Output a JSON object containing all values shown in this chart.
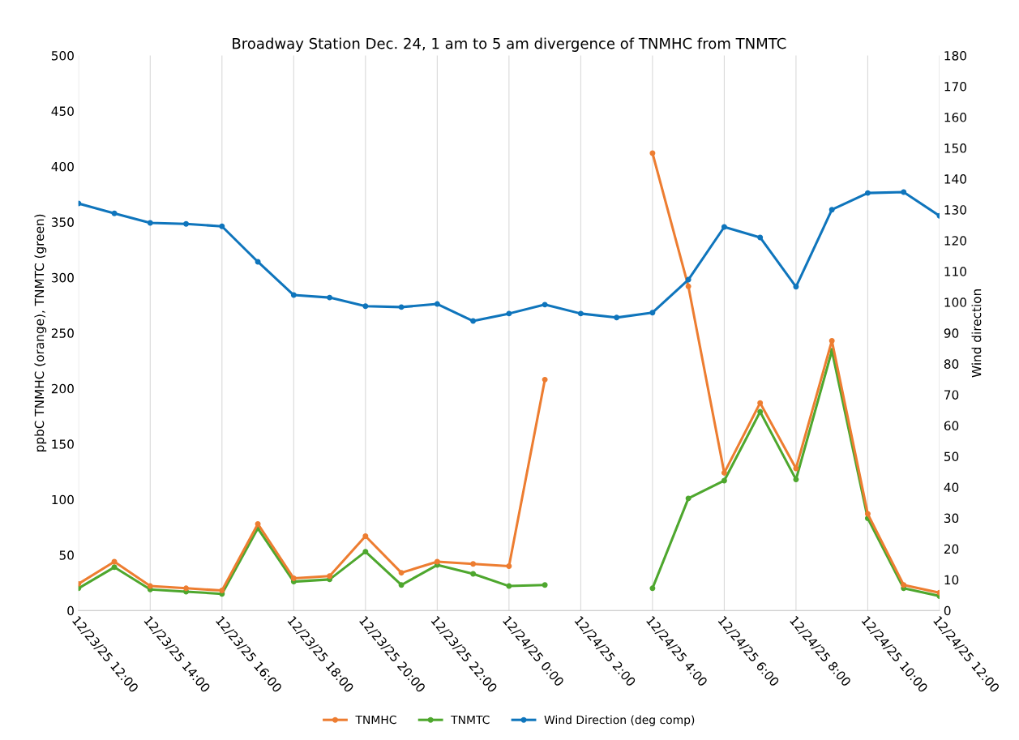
{
  "chart_data": {
    "type": "line",
    "title": "Broadway Station Dec. 24, 1 am to 5 am divergence of TNMHC from TNMTC",
    "ylabel": "ppbC TNMHC (orange), TNMTC (green)",
    "y2label": "Wind direction",
    "categories": [
      "12/23/25 12:00",
      null,
      "12/23/25 14:00",
      null,
      "12/23/25 16:00",
      null,
      "12/23/25 18:00",
      null,
      "12/23/25 20:00",
      null,
      "12/23/25 22:00",
      null,
      "12/24/25 0:00",
      null,
      "12/24/25 2:00",
      null,
      "12/24/25 4:00",
      null,
      "12/24/25 6:00",
      null,
      "12/24/25 8:00",
      null,
      "12/24/25 10:00",
      null,
      "12/24/25 12:00"
    ],
    "ylim": [
      0,
      500
    ],
    "yticks": [
      0,
      50,
      100,
      150,
      200,
      250,
      300,
      350,
      400,
      450,
      500
    ],
    "y2lim": [
      0,
      180
    ],
    "y2ticks": [
      0,
      10,
      20,
      30,
      40,
      50,
      60,
      70,
      80,
      90,
      100,
      110,
      120,
      130,
      140,
      150,
      160,
      170,
      180
    ],
    "grid": "x",
    "legend": "bottom",
    "marker": "circle",
    "line_style": "solid",
    "series": [
      {
        "name": "TNMHC",
        "color": "#ed7d31",
        "values": [
          24,
          44,
          22,
          20,
          18,
          78,
          29,
          31,
          67,
          34,
          44,
          42,
          40,
          208,
          null,
          null,
          412,
          292,
          124,
          187,
          128,
          243,
          87,
          23,
          16
        ]
      },
      {
        "name": "TNMTC",
        "color": "#4ea72e",
        "values": [
          20,
          39,
          19,
          17,
          15,
          74,
          26,
          28,
          53,
          23,
          41,
          33,
          22,
          23,
          null,
          null,
          20,
          101,
          117,
          179,
          118,
          234,
          83,
          20,
          13
        ]
      },
      {
        "name": "Wind Direction (deg comp)",
        "color": "#0f75bc",
        "axis": "y2",
        "values": [
          132,
          128.8,
          125.7,
          125.4,
          124.6,
          113.1,
          102.3,
          101.5,
          98.7,
          98.4,
          99.4,
          93.9,
          96.3,
          99.2,
          96.3,
          95,
          96.6,
          107.3,
          124.4,
          121,
          105,
          130,
          135.4,
          135.7,
          128
        ]
      }
    ]
  }
}
